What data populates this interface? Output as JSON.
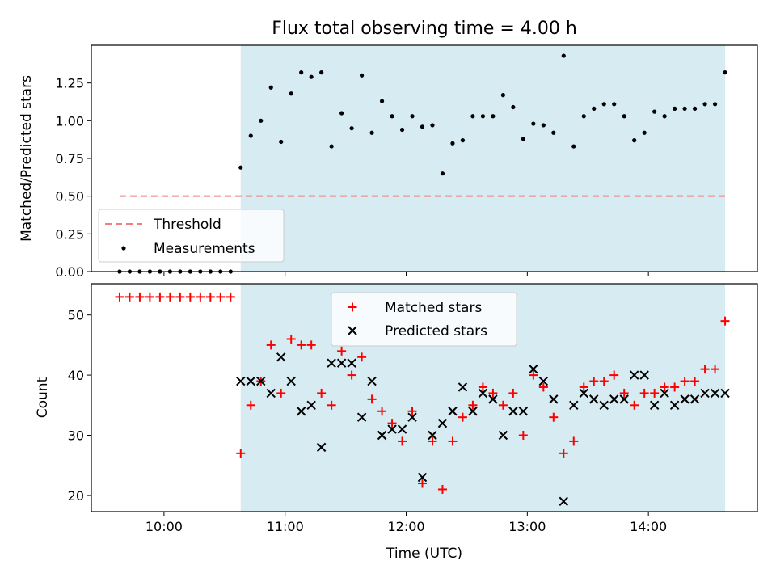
{
  "chart_data": [
    {
      "type": "scatter",
      "title": "Flux total observing time = 4.00 h",
      "xlabel": "",
      "ylabel": "Matched/Predicted stars",
      "xlim": [
        "09:24",
        "14:54"
      ],
      "ylim": [
        0,
        1.5
      ],
      "yticks": [
        "0.00",
        "0.25",
        "0.50",
        "0.75",
        "1.00",
        "1.25"
      ],
      "xticks": [
        "10:00",
        "11:00",
        "12:00",
        "13:00",
        "14:00"
      ],
      "shaded_span": [
        "10:38",
        "14:38"
      ],
      "shade_color": "#add8e6",
      "threshold": {
        "name": "Threshold",
        "value": 0.5,
        "x_range": [
          "09:38",
          "14:38"
        ],
        "color": "#f08080"
      },
      "legend_position": "lower-left",
      "series": [
        {
          "name": "Measurements",
          "marker": "dot",
          "color": "#000000",
          "x": [
            "09:38",
            "09:43",
            "09:48",
            "09:53",
            "09:58",
            "10:03",
            "10:08",
            "10:13",
            "10:18",
            "10:23",
            "10:28",
            "10:33",
            "10:38",
            "10:43",
            "10:48",
            "10:53",
            "10:58",
            "11:03",
            "11:08",
            "11:13",
            "11:18",
            "11:23",
            "11:28",
            "11:33",
            "11:38",
            "11:43",
            "11:48",
            "11:53",
            "11:58",
            "12:03",
            "12:08",
            "12:13",
            "12:18",
            "12:23",
            "12:28",
            "12:33",
            "12:38",
            "12:43",
            "12:48",
            "12:53",
            "12:58",
            "13:03",
            "13:08",
            "13:13",
            "13:18",
            "13:23",
            "13:28",
            "13:33",
            "13:38",
            "13:43",
            "13:48",
            "13:53",
            "13:58",
            "14:03",
            "14:08",
            "14:13",
            "14:18",
            "14:23",
            "14:28",
            "14:33",
            "14:38"
          ],
          "y": [
            0,
            0,
            0,
            0,
            0,
            0,
            0,
            0,
            0,
            0,
            0,
            0,
            0.69,
            0.9,
            1.0,
            1.22,
            0.86,
            1.18,
            1.32,
            1.29,
            1.32,
            0.83,
            1.05,
            0.95,
            1.3,
            0.92,
            1.13,
            1.03,
            0.94,
            1.03,
            0.96,
            0.97,
            0.65,
            0.85,
            0.87,
            1.03,
            1.03,
            1.03,
            1.17,
            1.09,
            0.88,
            0.98,
            0.97,
            0.92,
            1.43,
            0.83,
            1.03,
            1.08,
            1.11,
            1.11,
            1.03,
            0.87,
            0.92,
            1.06,
            1.03,
            1.08,
            1.08,
            1.08,
            1.11,
            1.11,
            1.32
          ]
        }
      ]
    },
    {
      "type": "scatter",
      "title": "",
      "xlabel": "Time (UTC)",
      "ylabel": "Count",
      "xlim": [
        "09:24",
        "14:54"
      ],
      "ylim": [
        17.3,
        55.2
      ],
      "yticks": [
        "20",
        "30",
        "40",
        "50"
      ],
      "xticks": [
        "10:00",
        "11:00",
        "12:00",
        "13:00",
        "14:00"
      ],
      "shaded_span": [
        "10:38",
        "14:38"
      ],
      "shade_color": "#add8e6",
      "legend_position": "upper-center",
      "series": [
        {
          "name": "Matched stars",
          "marker": "plus",
          "color": "#ff0000",
          "x": [
            "09:38",
            "09:43",
            "09:48",
            "09:53",
            "09:58",
            "10:03",
            "10:08",
            "10:13",
            "10:18",
            "10:23",
            "10:28",
            "10:33",
            "10:38",
            "10:43",
            "10:48",
            "10:53",
            "10:58",
            "11:03",
            "11:08",
            "11:13",
            "11:18",
            "11:23",
            "11:28",
            "11:33",
            "11:38",
            "11:43",
            "11:48",
            "11:53",
            "11:58",
            "12:03",
            "12:08",
            "12:13",
            "12:18",
            "12:23",
            "12:28",
            "12:33",
            "12:38",
            "12:43",
            "12:48",
            "12:53",
            "12:58",
            "13:03",
            "13:08",
            "13:13",
            "13:18",
            "13:23",
            "13:28",
            "13:33",
            "13:38",
            "13:43",
            "13:48",
            "13:53",
            "13:58",
            "14:03",
            "14:08",
            "14:13",
            "14:18",
            "14:23",
            "14:28",
            "14:33",
            "14:38"
          ],
          "y": [
            53,
            53,
            53,
            53,
            53,
            53,
            53,
            53,
            53,
            53,
            53,
            53,
            27,
            35,
            39,
            45,
            37,
            46,
            45,
            45,
            37,
            35,
            44,
            40,
            43,
            36,
            34,
            32,
            29,
            34,
            22,
            29,
            21,
            29,
            33,
            35,
            38,
            37,
            35,
            37,
            30,
            40,
            38,
            33,
            27,
            29,
            38,
            39,
            39,
            40,
            37,
            35,
            37,
            37,
            38,
            38,
            39,
            39,
            41,
            41,
            49
          ]
        },
        {
          "name": "Predicted stars",
          "marker": "x",
          "color": "#000000",
          "x": [
            "10:38",
            "10:43",
            "10:48",
            "10:53",
            "10:58",
            "11:03",
            "11:08",
            "11:13",
            "11:18",
            "11:23",
            "11:28",
            "11:33",
            "11:38",
            "11:43",
            "11:48",
            "11:53",
            "11:58",
            "12:03",
            "12:08",
            "12:13",
            "12:18",
            "12:23",
            "12:28",
            "12:33",
            "12:38",
            "12:43",
            "12:48",
            "12:53",
            "12:58",
            "13:03",
            "13:08",
            "13:13",
            "13:18",
            "13:23",
            "13:28",
            "13:33",
            "13:38",
            "13:43",
            "13:48",
            "13:53",
            "13:58",
            "14:03",
            "14:08",
            "14:13",
            "14:18",
            "14:23",
            "14:28",
            "14:33",
            "14:38"
          ],
          "y": [
            39,
            39,
            39,
            37,
            43,
            39,
            34,
            35,
            28,
            42,
            42,
            42,
            33,
            39,
            30,
            31,
            31,
            33,
            23,
            30,
            32,
            34,
            38,
            34,
            37,
            36,
            30,
            34,
            34,
            41,
            39,
            36,
            19,
            35,
            37,
            36,
            35,
            36,
            36,
            40,
            40,
            35,
            37,
            35,
            36,
            36,
            37,
            37,
            37
          ]
        }
      ]
    }
  ]
}
